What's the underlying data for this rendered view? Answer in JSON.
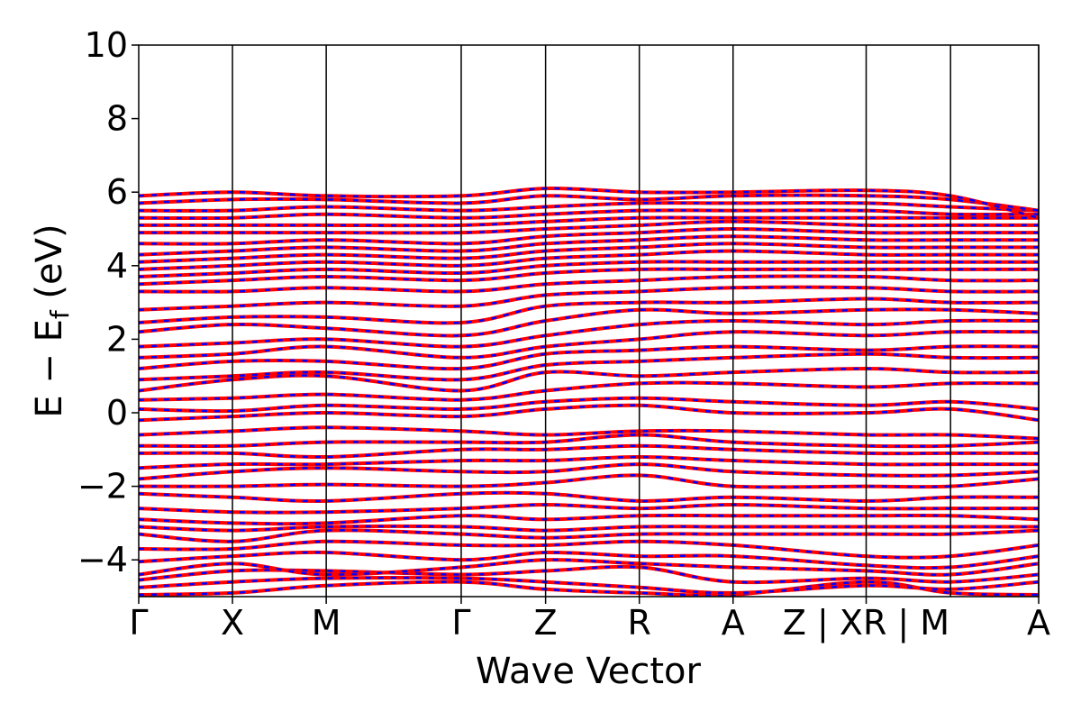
{
  "chart_data": {
    "type": "line",
    "title": "",
    "xlabel": "Wave Vector",
    "ylabel_main": "E − E",
    "ylabel_sub": "f",
    "ylabel_unit": " (eV)",
    "ylim": [
      -5,
      10
    ],
    "yticks": [
      -4,
      -2,
      0,
      2,
      4,
      6,
      8,
      10
    ],
    "ytick_labels": [
      "−4",
      "−2",
      "0",
      "2",
      "4",
      "6",
      "8",
      "10"
    ],
    "xlim": [
      0,
      9.6
    ],
    "kpoints": [
      {
        "label": "Γ",
        "x": 0.0
      },
      {
        "label": "X",
        "x": 1.0
      },
      {
        "label": "M",
        "x": 2.0
      },
      {
        "label": "Γ",
        "x": 3.44
      },
      {
        "label": "Z",
        "x": 4.34
      },
      {
        "label": "R",
        "x": 5.34
      },
      {
        "label": "A",
        "x": 6.34
      },
      {
        "label": "Z | XR | M",
        "x": 7.76
      },
      {
        "label": "A",
        "x": 9.6
      }
    ],
    "vlines": [
      1.0,
      2.0,
      3.44,
      4.34,
      5.34,
      6.34,
      7.76,
      8.66,
      9.6
    ],
    "grid": false,
    "legend": "none",
    "series": [
      {
        "color": "#ff0000",
        "style": "solid"
      },
      {
        "color": "#0000ff",
        "style": "dashed"
      }
    ],
    "seg_breaks": [
      0,
      1.0,
      2.0,
      3.44,
      4.34,
      5.34,
      6.34,
      7.76,
      8.66,
      9.6
    ],
    "bands_nodes": [
      [
        -4.95,
        -4.9,
        -4.7,
        -4.6,
        -4.8,
        -4.9,
        -4.95,
        -4.6,
        -4.9,
        -4.95
      ],
      [
        -4.75,
        -4.6,
        -4.5,
        -4.5,
        -4.6,
        -4.75,
        -4.9,
        -4.7,
        -4.8,
        -4.6
      ],
      [
        -4.55,
        -4.3,
        -4.3,
        -4.4,
        -4.3,
        -4.2,
        -4.6,
        -4.5,
        -4.6,
        -4.4
      ],
      [
        -4.4,
        -4.1,
        -4.4,
        -4.2,
        -4.0,
        -4.1,
        -4.2,
        -4.3,
        -4.4,
        -4.1
      ],
      [
        -4.05,
        -3.9,
        -3.8,
        -4.0,
        -3.8,
        -3.9,
        -3.9,
        -4.15,
        -4.2,
        -3.9
      ],
      [
        -3.7,
        -3.7,
        -3.5,
        -3.6,
        -3.6,
        -3.5,
        -3.6,
        -3.9,
        -3.9,
        -3.6
      ],
      [
        -3.3,
        -3.5,
        -3.2,
        -3.3,
        -3.4,
        -3.3,
        -3.3,
        -3.3,
        -3.3,
        -3.2
      ],
      [
        -3.1,
        -3.2,
        -3.1,
        -3.1,
        -3.2,
        -3.1,
        -3.1,
        -3.1,
        -3.1,
        -3.1
      ],
      [
        -2.9,
        -3.0,
        -3.0,
        -2.8,
        -2.9,
        -2.8,
        -2.8,
        -2.8,
        -2.8,
        -2.9
      ],
      [
        -2.6,
        -2.7,
        -2.7,
        -2.6,
        -2.5,
        -2.6,
        -2.5,
        -2.6,
        -2.6,
        -2.6
      ],
      [
        -2.2,
        -2.3,
        -2.4,
        -2.2,
        -2.2,
        -2.4,
        -2.3,
        -2.4,
        -2.3,
        -2.3
      ],
      [
        -2.0,
        -2.0,
        -1.95,
        -2.0,
        -1.9,
        -1.7,
        -2.0,
        -2.0,
        -2.0,
        -1.8
      ],
      [
        -1.8,
        -1.6,
        -1.5,
        -1.6,
        -1.6,
        -1.4,
        -1.6,
        -1.7,
        -1.7,
        -1.6
      ],
      [
        -1.5,
        -1.4,
        -1.4,
        -1.3,
        -1.3,
        -1.2,
        -1.3,
        -1.4,
        -1.4,
        -1.4
      ],
      [
        -1.1,
        -1.1,
        -1.2,
        -1.0,
        -1.0,
        -0.9,
        -1.0,
        -1.1,
        -1.1,
        -1.1
      ],
      [
        -0.9,
        -0.9,
        -0.8,
        -0.8,
        -0.8,
        -0.6,
        -0.8,
        -0.9,
        -0.9,
        -0.8
      ],
      [
        -0.6,
        -0.5,
        -0.4,
        -0.5,
        -0.6,
        -0.5,
        -0.5,
        -0.6,
        -0.6,
        -0.7
      ],
      [
        -0.2,
        -0.1,
        0.0,
        -0.1,
        0.1,
        0.2,
        0.0,
        0.0,
        0.1,
        -0.2
      ],
      [
        0.1,
        0.05,
        0.2,
        0.1,
        0.3,
        0.4,
        0.3,
        0.2,
        0.3,
        0.1
      ],
      [
        0.35,
        0.4,
        0.5,
        0.35,
        0.6,
        0.8,
        0.8,
        0.7,
        0.8,
        0.8
      ],
      [
        0.6,
        0.9,
        1.0,
        0.6,
        1.1,
        1.0,
        1.1,
        1.2,
        1.1,
        1.1
      ],
      [
        0.9,
        1.0,
        1.1,
        0.9,
        1.3,
        1.4,
        1.5,
        1.6,
        1.5,
        1.5
      ],
      [
        1.2,
        1.4,
        1.4,
        1.2,
        1.6,
        1.7,
        1.8,
        1.7,
        1.8,
        1.8
      ],
      [
        1.5,
        1.6,
        1.8,
        1.5,
        1.8,
        2.0,
        2.2,
        2.1,
        2.2,
        2.2
      ],
      [
        1.8,
        1.9,
        2.0,
        1.8,
        2.1,
        2.4,
        2.5,
        2.4,
        2.5,
        2.5
      ],
      [
        2.2,
        2.4,
        2.3,
        2.1,
        2.5,
        2.8,
        2.7,
        2.8,
        2.8,
        2.7
      ],
      [
        2.45,
        2.6,
        2.6,
        2.45,
        2.9,
        3.0,
        3.0,
        3.1,
        3.0,
        3.0
      ],
      [
        2.8,
        2.9,
        3.0,
        2.9,
        3.2,
        3.3,
        3.4,
        3.4,
        3.3,
        3.3
      ],
      [
        3.3,
        3.3,
        3.4,
        3.3,
        3.5,
        3.6,
        3.7,
        3.7,
        3.6,
        3.6
      ],
      [
        3.5,
        3.6,
        3.7,
        3.6,
        3.8,
        3.9,
        3.9,
        3.9,
        3.9,
        3.9
      ],
      [
        3.7,
        3.8,
        3.9,
        3.8,
        4.0,
        4.1,
        4.1,
        4.1,
        4.1,
        4.1
      ],
      [
        3.9,
        4.0,
        4.1,
        4.0,
        4.2,
        4.3,
        4.4,
        4.3,
        4.3,
        4.3
      ],
      [
        4.1,
        4.2,
        4.3,
        4.2,
        4.4,
        4.5,
        4.6,
        4.5,
        4.5,
        4.5
      ],
      [
        4.3,
        4.4,
        4.5,
        4.4,
        4.6,
        4.7,
        4.8,
        4.7,
        4.7,
        4.7
      ],
      [
        4.6,
        4.6,
        4.7,
        4.6,
        4.8,
        4.9,
        5.0,
        4.9,
        4.9,
        4.9
      ],
      [
        4.9,
        4.9,
        4.9,
        4.9,
        5.0,
        5.1,
        5.2,
        5.1,
        5.1,
        5.1
      ],
      [
        5.1,
        5.1,
        5.1,
        5.1,
        5.2,
        5.3,
        5.3,
        5.3,
        5.3,
        5.3
      ],
      [
        5.3,
        5.3,
        5.4,
        5.3,
        5.4,
        5.5,
        5.5,
        5.5,
        5.4,
        5.4
      ],
      [
        5.5,
        5.5,
        5.6,
        5.5,
        5.6,
        5.7,
        5.7,
        5.7,
        5.6,
        5.5
      ],
      [
        5.7,
        5.8,
        5.8,
        5.7,
        5.9,
        5.8,
        5.9,
        5.9,
        5.8,
        5.5
      ],
      [
        5.9,
        6.0,
        5.9,
        5.9,
        6.1,
        6.0,
        6.0,
        6.05,
        5.9,
        5.3
      ]
    ]
  }
}
